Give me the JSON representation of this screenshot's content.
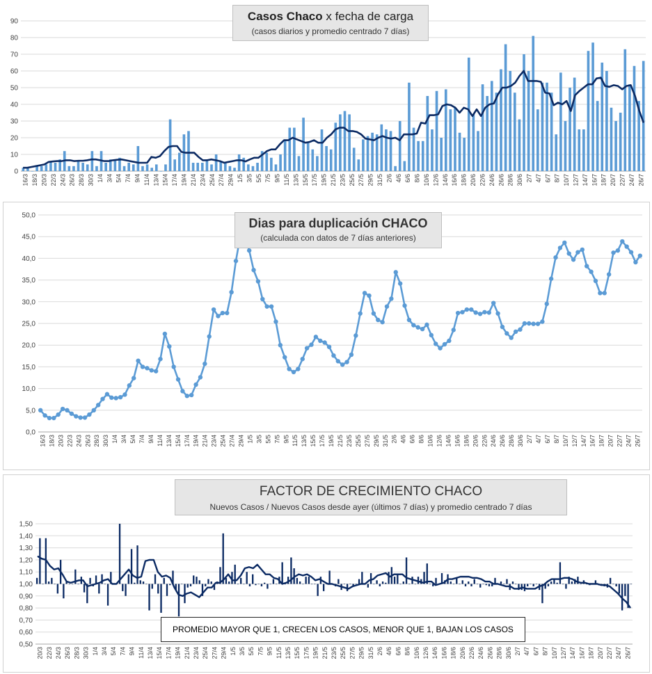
{
  "colors": {
    "bar": "#5b9bd5",
    "line_dark": "#0b2a63",
    "line_blue": "#5b9bd5",
    "grid": "#d9d9d9",
    "title_bg": "#e6e6e6"
  },
  "chart_data": [
    {
      "type": "bar",
      "title_bold": "Casos Chaco",
      "title_rest": "x fecha de carga",
      "subtitle": "(casos diarios y promedio  centrado 7 días)",
      "ylim": [
        0,
        90
      ],
      "yticks": [
        "0",
        "10",
        "20",
        "30",
        "40",
        "50",
        "60",
        "70",
        "80",
        "90"
      ],
      "tick_labels": [
        "16/3",
        "18/3",
        "20/3",
        "22/3",
        "24/3",
        "26/3",
        "28/3",
        "30/3",
        "1/4",
        "3/4",
        "5/4",
        "7/4",
        "9/4",
        "11/4",
        "13/4",
        "15/4",
        "17/4",
        "19/4",
        "21/4",
        "23/4",
        "25/4",
        "27/4",
        "29/4",
        "1/5",
        "3/5",
        "5/5",
        "7/5",
        "9/5",
        "11/5",
        "13/5",
        "15/5",
        "17/5",
        "19/5",
        "21/5",
        "23/5",
        "25/5",
        "27/5",
        "29/5",
        "31/5",
        "2/6",
        "4/6",
        "6/6",
        "8/6",
        "10/6",
        "12/6",
        "14/6",
        "16/6",
        "18/6",
        "20/6",
        "22/6",
        "24/6",
        "26/6",
        "28/6",
        "30/6",
        "2/7",
        "4/7",
        "6/7",
        "8/7",
        "10/7",
        "12/7",
        "14/7",
        "16/7",
        "18/7",
        "20/7",
        "22/7",
        "24/7",
        "26/7"
      ],
      "series": [
        {
          "kind": "bar",
          "values": [
            2,
            2,
            0,
            3,
            3,
            4,
            6,
            5,
            7,
            12,
            3,
            3,
            6,
            5,
            4,
            12,
            3,
            12,
            5,
            7,
            7,
            8,
            3,
            5,
            4,
            15,
            3,
            4,
            2,
            4,
            0,
            4,
            31,
            7,
            11,
            22,
            24,
            5,
            5,
            5,
            7,
            4,
            10,
            6,
            5,
            3,
            2,
            10,
            8,
            4,
            3,
            5,
            12,
            11,
            8,
            4,
            10,
            19,
            26,
            26,
            9,
            32,
            17,
            13,
            9,
            25,
            15,
            13,
            29,
            34,
            36,
            34,
            14,
            7,
            19,
            21,
            23,
            22,
            28,
            25,
            24,
            3,
            30,
            6,
            53,
            26,
            18,
            18,
            45,
            25,
            48,
            20,
            49,
            37,
            38,
            23,
            20,
            68,
            34,
            24,
            52,
            45,
            54,
            47,
            61,
            76,
            60,
            47,
            31,
            70,
            60,
            81,
            37,
            53,
            53,
            47,
            22,
            59,
            30,
            50,
            56,
            25,
            25,
            72,
            77,
            42,
            65,
            60,
            38,
            30,
            35,
            73,
            52,
            63,
            42,
            66
          ],
          "name": ""
        },
        {
          "kind": "line",
          "values": [
            2,
            2,
            2.5,
            3,
            3.5,
            4,
            5.5,
            5.8,
            6,
            6,
            6.5,
            6.5,
            6,
            6.2,
            6.2,
            6.5,
            7,
            7,
            6.5,
            6,
            6,
            6.5,
            6.8,
            7,
            6.5,
            6,
            5.5,
            5,
            5,
            5,
            8.5,
            8,
            9,
            12,
            14.5,
            15,
            15,
            11.5,
            11,
            11,
            11,
            8.5,
            6.5,
            6.5,
            7,
            6.5,
            6,
            5,
            5.5,
            6,
            6.5,
            6.5,
            5.8,
            7,
            8,
            8,
            10,
            12,
            13,
            13,
            16,
            18.5,
            18.5,
            20,
            19,
            18,
            17,
            17.5,
            18.5,
            17,
            17,
            20,
            22,
            25,
            26,
            26,
            24,
            24,
            23.5,
            22,
            19.5,
            19,
            18.5,
            20,
            21,
            20,
            19.5,
            20,
            18.5,
            22,
            22,
            22,
            22.5,
            29,
            28.5,
            33.5,
            33.5,
            34,
            39,
            40,
            39.5,
            38,
            35,
            38,
            37,
            33,
            37,
            33,
            38,
            40,
            40.5,
            46,
            50,
            50,
            51,
            53,
            57,
            60,
            54,
            54,
            54,
            53.5,
            47,
            46.5,
            39.5,
            41,
            40,
            42,
            36,
            45.5,
            48,
            50,
            52,
            52,
            55.5,
            56,
            51,
            50.5,
            51.5,
            51,
            49,
            51,
            51.5,
            45,
            36,
            29
          ],
          "name": ""
        }
      ]
    },
    {
      "type": "line",
      "title": "Dias para duplicación CHACO",
      "subtitle": "(calculada con datos de 7 días anteriores)",
      "ylim": [
        0,
        50
      ],
      "yticks": [
        "0,0",
        "5,0",
        "10,0",
        "15,0",
        "20,0",
        "25,0",
        "30,0",
        "35,0",
        "40,0",
        "45,0",
        "50,0"
      ],
      "tick_labels": [
        "16/3",
        "18/3",
        "20/3",
        "22/3",
        "24/3",
        "26/3",
        "28/3",
        "30/3",
        "1/4",
        "3/4",
        "5/4",
        "7/4",
        "9/4",
        "11/4",
        "13/4",
        "15/4",
        "17/4",
        "19/4",
        "21/4",
        "23/4",
        "25/4",
        "27/4",
        "29/4",
        "1/5",
        "3/5",
        "5/5",
        "7/5",
        "9/5",
        "11/5",
        "13/5",
        "15/5",
        "17/5",
        "19/5",
        "21/5",
        "23/5",
        "25/5",
        "27/5",
        "29/5",
        "31/5",
        "2/6",
        "4/6",
        "6/6",
        "8/6",
        "10/6",
        "12/6",
        "14/6",
        "16/6",
        "18/6",
        "20/6",
        "22/6",
        "24/6",
        "26/6",
        "28/6",
        "30/6",
        "2/7",
        "4/7",
        "6/7",
        "8/7",
        "10/7",
        "12/7",
        "14/7",
        "16/7",
        "18/7",
        "20/7",
        "22/7",
        "24/7",
        "26/7"
      ],
      "series": [
        {
          "kind": "line",
          "name": "",
          "values": [
            5,
            3.8,
            3.2,
            3.2,
            4,
            5.3,
            5,
            4.2,
            3.6,
            3.3,
            3.3,
            4,
            5,
            6.2,
            7.6,
            8.7,
            7.9,
            7.8,
            8,
            8.6,
            10.7,
            12.4,
            16.4,
            15,
            14.7,
            14.2,
            14,
            16.8,
            22.6,
            19.7,
            15,
            12.1,
            9.4,
            8.3,
            8.5,
            10.9,
            12.6,
            15.7,
            22,
            28.2,
            26.7,
            27.4,
            27.4,
            32.2,
            39.4,
            45.2,
            45.5,
            41.8,
            37.3,
            34.7,
            30.6,
            28.9,
            28.9,
            25.4,
            20,
            17.2,
            14.5,
            13.8,
            14.5,
            16.8,
            19.3,
            20.1,
            21.9,
            21,
            20.6,
            19.6,
            17.6,
            16.3,
            15.5,
            16.1,
            17.8,
            22.2,
            27.3,
            32,
            31.4,
            27.3,
            25.8,
            25.3,
            28.9,
            30.7,
            36.8,
            34.2,
            29.1,
            25.8,
            24.6,
            24.1,
            23.7,
            24.7,
            22.3,
            20.3,
            19.3,
            20.2,
            21,
            23.5,
            27.4,
            27.6,
            28.2,
            28.2,
            27.5,
            27.2,
            27.6,
            27.5,
            29.7,
            27.3,
            24.2,
            22.7,
            21.7,
            23.1,
            23.6,
            25,
            25,
            24.9,
            24.9,
            25.4,
            29.5,
            35.3,
            40.2,
            42.4,
            43.6,
            41.1,
            39.7,
            41.4,
            42,
            38.2,
            36.9,
            34.8,
            32,
            32,
            36.3,
            41.3,
            41.8,
            43.9,
            42.7,
            41.4,
            39.1,
            40.6
          ]
        }
      ]
    },
    {
      "type": "bar",
      "title": "FACTOR DE CRECIMIENTO CHACO",
      "subtitle": "Nuevos Casos  / Nuevos Casos desde ayer (últimos 7 días) y promedio  centrado  7 días",
      "note": "PROMEDIO MAYOR QUE 1, CRECEN LOS CASOS, MENOR QUE 1, BAJAN LOS CASOS",
      "ylim": [
        0.5,
        1.5
      ],
      "yticks": [
        "0,50",
        "0,60",
        "0,70",
        "0,80",
        "0,90",
        "1,00",
        "1,10",
        "1,20",
        "1,30",
        "1,40",
        "1,50"
      ],
      "tick_labels": [
        "20/3",
        "22/3",
        "24/3",
        "26/3",
        "28/3",
        "30/3",
        "1/4",
        "3/4",
        "5/4",
        "7/4",
        "9/4",
        "11/4",
        "13/4",
        "15/4",
        "17/4",
        "19/4",
        "21/4",
        "23/4",
        "25/4",
        "27/4",
        "29/4",
        "1/5",
        "3/5",
        "5/5",
        "7/5",
        "9/5",
        "11/5",
        "13/5",
        "15/5",
        "17/5",
        "19/5",
        "21/5",
        "23/5",
        "25/5",
        "27/5",
        "29/5",
        "31/5",
        "2/6",
        "4/6",
        "6/6",
        "8/6",
        "10/6",
        "12/6",
        "14/6",
        "16/6",
        "18/6",
        "20/6",
        "22/6",
        "24/6",
        "26/6",
        "28/6",
        "30/6",
        "2/7",
        "4/7",
        "6/7",
        "8/7",
        "10/7",
        "12/7",
        "14/7",
        "16/7",
        "18/7",
        "20/7",
        "22/7",
        "24/7",
        "26/7"
      ],
      "series": [
        {
          "kind": "bar",
          "name": "",
          "values": [
            1.05,
            1.38,
            1.0,
            1.38,
            1.02,
            1.05,
            1.0,
            0.92,
            1.2,
            0.88,
            1.02,
            1.0,
            1.0,
            1.12,
            1.0,
            1.06,
            0.93,
            0.84,
            1.05,
            0.98,
            1.07,
            0.92,
            1.08,
            1.0,
            0.82,
            1.1,
            1.0,
            1.0,
            1.5,
            0.94,
            0.9,
            1.08,
            1.29,
            1.01,
            1.32,
            1.03,
            1.02,
            1.0,
            0.78,
            0.96,
            1.08,
            0.92,
            0.76,
            1.05,
            0.9,
            0.99,
            1.11,
            0.95,
            0.73,
            1.0,
            0.84,
            0.97,
            0.98,
            1.07,
            1.06,
            1.03,
            0.9,
            0.98,
            1.04,
            1.02,
            0.95,
            1.02,
            1.14,
            1.42,
            1.05,
            1.02,
            1.1,
            1.16,
            1.0,
            1.05,
            1.0,
            1.1,
            0.98,
            1.08,
            0.99,
            1.0,
            0.98,
            1.01,
            0.96,
            1.0,
            1.04,
            1.0,
            1.06,
            1.18,
            1.0,
            1.06,
            1.22,
            1.13,
            1.05,
            1.02,
            1.0,
            1.06,
            1.06,
            1.0,
            1.0,
            0.9,
            1.06,
            0.94,
            1.0,
            1.11,
            1.0,
            0.98,
            1.04,
            0.95,
            1.0,
            0.94,
            1.0,
            0.98,
            1.0,
            1.04,
            1.1,
            1.0,
            0.97,
            1.09,
            1.0,
            1.03,
            0.98,
            1.02,
            1.01,
            1.1,
            1.14,
            1.06,
            1.08,
            1.0,
            1.02,
            1.22,
            1.0,
            1.06,
            1.0,
            1.06,
            1.04,
            1.1,
            1.17,
            1.0,
            0.98,
            1.05,
            1.0,
            1.09,
            1.03,
            1.08,
            1.02,
            1.0,
            1.05,
            1.0,
            1.03,
            0.98,
            1.02,
            0.98,
            1.04,
            1.0,
            0.97,
            1.0,
            0.99,
            0.98,
            0.98,
            1.05,
            1.0,
            1.02,
            1.0,
            1.04,
            0.95,
            1.02,
            1.0,
            0.95,
            0.95,
            0.94,
            0.98,
            1.0,
            0.98,
            1.0,
            0.95,
            0.84,
            0.96,
            0.98,
            1.02,
            1.04,
            1.01,
            1.18,
            1.0,
            0.96,
            1.06,
            1.02,
            1.04,
            1.06,
            1.0,
            1.03,
            1.0,
            0.99,
            1.0,
            1.03,
            0.99,
            1.0,
            0.98,
            0.97,
            1.05,
            1.0,
            0.98,
            0.92,
            0.78,
            0.9,
            0.8,
            1.0
          ]
        },
        {
          "kind": "line",
          "name": "",
          "values": [
            1.23,
            1.21,
            1.2,
            1.15,
            1.12,
            1.13,
            1.08,
            1.02,
            1.01,
            1.02,
            1.03,
            1.03,
            0.98,
            0.99,
            1.0,
            1.01,
            1.03,
            1.04,
            1.0,
            1.0,
            1.04,
            1.08,
            1.12,
            1.07,
            1.05,
            1.06,
            1.19,
            1.2,
            1.2,
            1.1,
            1.06,
            1.07,
            1.05,
            0.97,
            0.91,
            0.9,
            0.92,
            0.93,
            0.91,
            0.89,
            0.93,
            0.97,
            0.97,
            1.01,
            1.01,
            1.04,
            1.08,
            1.03,
            1.03,
            1.07,
            1.13,
            1.14,
            1.13,
            1.16,
            1.12,
            1.08,
            1.08,
            1.05,
            1.04,
            1.0,
            1.01,
            1.03,
            1.06,
            1.08,
            1.07,
            1.08,
            1.06,
            1.03,
            1.04,
            1.02,
            1.0,
            1.0,
            0.99,
            0.98,
            0.97,
            0.96,
            0.98,
            0.99,
            1.0,
            1.0,
            1.03,
            1.04,
            1.07,
            1.08,
            1.09,
            1.06,
            1.08,
            1.08,
            1.08,
            1.05,
            1.04,
            1.03,
            1.02,
            1.01,
            1.02,
            1.02,
            0.99,
            1.0,
            1.01,
            1.04,
            1.04,
            1.05,
            1.06,
            1.06,
            1.06,
            1.05,
            1.05,
            1.04,
            1.02,
            1.02,
            1.0,
            1.0,
            0.99,
            0.98,
            0.98,
            0.96,
            0.96,
            0.97,
            0.96,
            0.96,
            0.96,
            0.98,
            0.99,
            1.02,
            1.04,
            1.04,
            1.04,
            1.05,
            1.05,
            1.04,
            1.02,
            1.01,
            1.01,
            1.0,
            1.0,
            1.0,
            0.99,
            0.99,
            0.98,
            0.95,
            0.92,
            0.88,
            0.85,
            0.8
          ]
        }
      ]
    }
  ]
}
